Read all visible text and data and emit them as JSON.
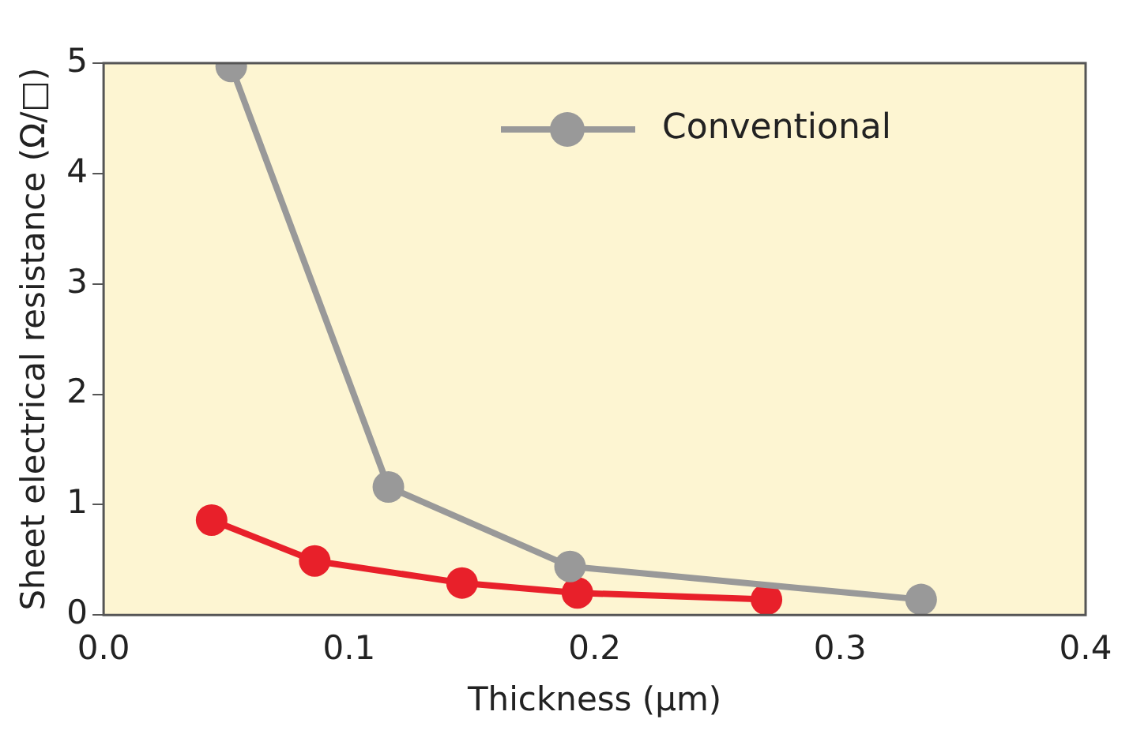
{
  "chart_data": {
    "type": "line",
    "xlabel": "Thickness (μm)",
    "ylabel": "Sheet electrical resistance (Ω/□)",
    "xlim": [
      0,
      0.4
    ],
    "xticks": [
      {
        "value": 0,
        "label": "0.0"
      },
      {
        "value": 0.1,
        "label": "0.1"
      },
      {
        "value": 0.2,
        "label": "0.2"
      },
      {
        "value": 0.3,
        "label": "0.3"
      },
      {
        "value": 0.4,
        "label": "0.4"
      }
    ],
    "ylim": [
      0,
      5
    ],
    "yticks": [
      0,
      1,
      2,
      3,
      4,
      5
    ],
    "grid": false,
    "legend": "top right",
    "marker": "circle",
    "line_style": "solid",
    "series": [
      {
        "name": "Conventional",
        "color": "#999999",
        "x": [
          0.052,
          0.116,
          0.19,
          0.333
        ],
        "values": [
          4.97,
          1.16,
          0.44,
          0.14
        ]
      },
      {
        "color": "#e8202a",
        "x": [
          0.044,
          0.086,
          0.146,
          0.193,
          0.27
        ],
        "values": [
          0.86,
          0.49,
          0.29,
          0.2,
          0.14
        ]
      }
    ]
  }
}
